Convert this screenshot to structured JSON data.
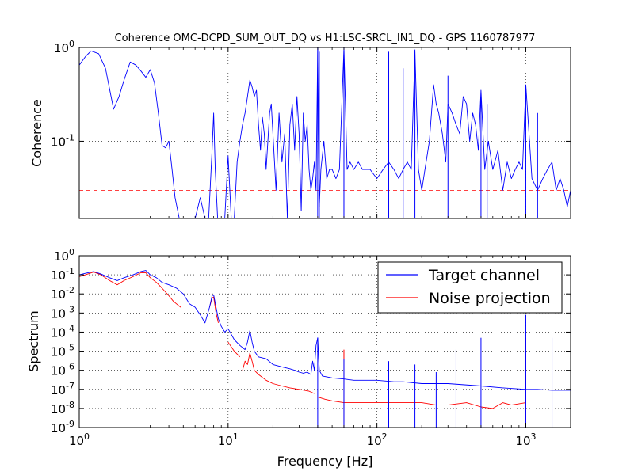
{
  "chart_data": [
    {
      "type": "line",
      "title": "Coherence OMC-DCPD_SUM_OUT_DQ vs H1:LSC-SRCL_IN1_DQ - GPS 1160787977",
      "xlabel": "",
      "ylabel": "Coherence",
      "xscale": "log",
      "yscale": "log",
      "xlim": [
        1,
        2000
      ],
      "ylim": [
        0.015,
        1
      ],
      "x_ticks": [
        "10^0",
        "10^1",
        "10^2",
        "10^3"
      ],
      "y_ticks": [
        "10^-1",
        "10^0"
      ],
      "grid": true,
      "colors": {
        "coherence": "#0000ff",
        "threshold": "#ff0000"
      },
      "threshold": {
        "y": 0.03,
        "style": "dashed"
      },
      "series": [
        {
          "x": [
            1.0,
            1.1,
            1.2,
            1.35,
            1.5,
            1.7,
            1.85,
            2.0,
            2.2,
            2.4,
            2.6,
            2.8,
            3.0,
            3.2,
            3.4,
            3.6,
            3.8,
            4.0,
            4.2,
            4.4,
            4.7,
            5.0,
            5.3,
            5.6,
            6.0,
            6.5,
            7.0,
            7.4,
            7.8,
            8.0,
            8.2,
            8.5,
            9.0,
            9.5,
            10.0,
            10.5,
            11.0,
            11.5,
            12.0,
            12.5,
            13.0,
            13.5,
            14.0,
            14.5,
            15.0,
            15.5,
            16.0,
            16.5,
            17.0,
            17.5,
            18.0,
            18.5,
            19.0,
            19.5,
            20.0,
            21.0,
            22.0,
            23.0,
            24.0,
            25.0,
            26.0,
            27.0,
            28.0,
            29.0,
            30.0,
            31.0,
            32.0,
            33.0,
            34.0,
            35.0,
            36.0,
            37.0,
            38.0,
            39.0,
            40.0,
            41.0,
            42.0,
            44.0,
            46.0,
            48.0,
            50.0,
            53.0,
            56.0,
            60.0,
            63.0,
            66.0,
            70.0,
            75.0,
            80.0,
            90.0,
            100.0,
            110.0,
            120.0,
            130.0,
            140.0,
            150.0,
            160.0,
            170.0,
            180.0,
            190.0,
            200.0,
            210.0,
            225.0,
            240.0,
            250.0,
            260.0,
            275.0,
            290.0,
            300.0,
            320.0,
            340.0,
            360.0,
            380.0,
            400.0,
            420.0,
            440.0,
            460.0,
            480.0,
            500.0,
            530.0,
            560.0,
            600.0,
            650.0,
            700.0,
            750.0,
            800.0,
            850.0,
            900.0,
            950.0,
            1000.0,
            1100.0,
            1200.0,
            1300.0,
            1400.0,
            1500.0,
            1600.0,
            1700.0,
            1800.0,
            1900.0,
            2000.0
          ],
          "y": [
            0.65,
            0.8,
            0.92,
            0.86,
            0.6,
            0.22,
            0.3,
            0.45,
            0.7,
            0.65,
            0.56,
            0.48,
            0.58,
            0.42,
            0.2,
            0.09,
            0.085,
            0.1,
            0.05,
            0.025,
            0.015,
            0.01,
            0.015,
            0.01,
            0.015,
            0.025,
            0.01,
            0.015,
            0.08,
            0.2,
            0.05,
            0.015,
            0.01,
            0.015,
            0.07,
            0.015,
            0.01,
            0.06,
            0.1,
            0.15,
            0.2,
            0.3,
            0.45,
            0.38,
            0.3,
            0.35,
            0.15,
            0.08,
            0.18,
            0.12,
            0.05,
            0.1,
            0.2,
            0.25,
            0.12,
            0.03,
            0.2,
            0.06,
            0.12,
            0.015,
            0.15,
            0.25,
            0.08,
            0.3,
            0.12,
            0.018,
            0.2,
            0.1,
            0.15,
            0.05,
            0.03,
            0.04,
            0.06,
            0.03,
            0.99,
            0.02,
            0.05,
            0.1,
            0.04,
            0.05,
            0.05,
            0.04,
            0.05,
            0.99,
            0.05,
            0.06,
            0.05,
            0.06,
            0.05,
            0.05,
            0.04,
            0.05,
            0.06,
            0.05,
            0.04,
            0.05,
            0.06,
            0.05,
            0.9,
            0.05,
            0.03,
            0.05,
            0.1,
            0.4,
            0.25,
            0.2,
            0.12,
            0.06,
            0.25,
            0.2,
            0.15,
            0.12,
            0.3,
            0.25,
            0.1,
            0.2,
            0.15,
            0.08,
            0.35,
            0.05,
            0.1,
            0.05,
            0.08,
            0.03,
            0.06,
            0.04,
            0.05,
            0.06,
            0.05,
            0.4,
            0.04,
            0.03,
            0.04,
            0.05,
            0.06,
            0.03,
            0.04,
            0.03,
            0.02,
            0.03
          ],
          "spikes": [
            [
              40,
              0.99
            ],
            [
              41,
              0.9
            ],
            [
              60,
              0.99
            ],
            [
              120,
              0.9
            ],
            [
              150,
              0.6
            ],
            [
              180,
              0.95
            ],
            [
              300,
              0.5
            ],
            [
              500,
              0.3
            ],
            [
              550,
              0.25
            ],
            [
              1000,
              0.4
            ],
            [
              1200,
              0.2
            ]
          ]
        }
      ]
    },
    {
      "type": "line",
      "title": "",
      "xlabel": "Frequency [Hz]",
      "ylabel": "Spectrum",
      "xscale": "log",
      "yscale": "log",
      "xlim": [
        1,
        2000
      ],
      "ylim": [
        1e-09,
        1
      ],
      "x_ticks": [
        "10^0",
        "10^1",
        "10^2",
        "10^3"
      ],
      "y_ticks": [
        "10^-9",
        "10^-8",
        "10^-7",
        "10^-6",
        "10^-5",
        "10^-4",
        "10^-3",
        "10^-2",
        "10^-1",
        "10^0"
      ],
      "grid": true,
      "legend": {
        "position": "top-right"
      },
      "series": [
        {
          "name": "Target channel",
          "color": "#0000ff",
          "x": [
            1.0,
            1.1,
            1.25,
            1.4,
            1.6,
            1.8,
            2.0,
            2.3,
            2.6,
            2.8,
            3.0,
            3.3,
            3.6,
            4.0,
            4.5,
            5.0,
            5.5,
            6.0,
            6.5,
            7.0,
            7.5,
            7.8,
            8.0,
            8.3,
            8.6,
            9.0,
            9.5,
            10.0,
            11.0,
            12.0,
            13.0,
            13.5,
            14.0,
            14.5,
            15.0,
            16.0,
            18.0,
            20.0,
            23.0,
            26.0,
            28.0,
            30.0,
            32.0,
            34.0,
            36.0,
            37.0,
            38.0,
            39.0,
            40.0,
            41.0,
            43.0,
            50.0,
            60.0,
            70.0,
            100.0,
            130.0,
            150.0,
            200.0,
            300.0,
            500.0,
            700.0,
            1000.0,
            1200.0,
            1500.0,
            2000.0
          ],
          "y": [
            0.1,
            0.12,
            0.15,
            0.11,
            0.07,
            0.05,
            0.07,
            0.1,
            0.15,
            0.17,
            0.1,
            0.07,
            0.04,
            0.03,
            0.02,
            0.01,
            0.003,
            0.002,
            0.0008,
            0.0003,
            0.002,
            0.008,
            0.009,
            0.002,
            0.0005,
            0.0002,
            0.0001,
            0.00015,
            4e-05,
            2e-05,
            1.2e-05,
            3e-05,
            0.00012,
            3e-05,
            1e-05,
            5e-06,
            4e-06,
            2e-06,
            1.5e-06,
            1.2e-06,
            1e-06,
            8e-07,
            7e-07,
            8e-07,
            6e-07,
            3e-06,
            1e-06,
            2e-05,
            5e-05,
            1e-06,
            5e-07,
            4e-07,
            3.5e-07,
            3e-07,
            3e-07,
            2.5e-07,
            2.5e-07,
            2e-07,
            2e-07,
            1.5e-07,
            1.2e-07,
            1e-07,
            1e-07,
            9e-08,
            9e-08
          ],
          "spikes": [
            [
              40,
              5e-05
            ],
            [
              60,
              4e-06
            ],
            [
              120,
              3e-06
            ],
            [
              180,
              2e-06
            ],
            [
              250,
              8e-07
            ],
            [
              340,
              1.2e-05
            ],
            [
              500,
              5e-05
            ],
            [
              1000,
              0.0008
            ],
            [
              1500,
              5e-05
            ],
            [
              2000,
              1.5e-05
            ]
          ]
        },
        {
          "name": "Noise projection",
          "color": "#ff0000",
          "x": [
            1.0,
            1.1,
            1.25,
            1.4,
            1.6,
            1.8,
            2.0,
            2.3,
            2.6,
            2.8,
            3.0,
            3.3,
            3.6,
            4.0,
            4.3,
            4.5,
            4.8,
            null,
            7.5,
            7.8,
            8.0,
            8.3,
            8.6,
            null,
            10.0,
            11.0,
            12.0,
            null,
            12.5,
            13.0,
            13.5,
            14.0,
            14.5,
            15.0,
            16.0,
            18.0,
            20.0,
            23.0,
            26.0,
            30.0,
            35.0,
            38.0,
            null,
            40.0,
            45.0,
            50.0,
            60.0,
            70.0,
            80.0,
            100.0,
            150.0,
            200.0,
            250.0,
            300.0,
            400.0,
            500.0,
            600.0,
            700.0,
            800.0,
            1000.0
          ],
          "y": [
            0.08,
            0.1,
            0.14,
            0.1,
            0.05,
            0.03,
            0.05,
            0.08,
            0.13,
            0.13,
            0.07,
            0.04,
            0.02,
            0.008,
            0.004,
            0.003,
            0.002,
            null,
            0.002,
            0.006,
            0.007,
            0.001,
            0.0003,
            null,
            3e-05,
            1e-05,
            5e-06,
            null,
            1e-06,
            3e-06,
            2e-06,
            8e-06,
            3e-06,
            1e-06,
            6e-07,
            3e-07,
            2e-07,
            1.5e-07,
            1.2e-07,
            1e-07,
            8e-08,
            6e-08,
            null,
            4e-08,
            3e-08,
            2.5e-08,
            2e-08,
            2e-08,
            2e-08,
            2e-08,
            2e-08,
            2e-08,
            1.5e-08,
            1.5e-08,
            2e-08,
            1.2e-08,
            1e-08,
            2e-08,
            1.5e-08,
            2e-08
          ],
          "spikes": [
            [
              60,
              1.2e-05
            ],
            [
              120,
              2e-06
            ],
            [
              1000,
              5e-05
            ]
          ]
        }
      ]
    }
  ]
}
